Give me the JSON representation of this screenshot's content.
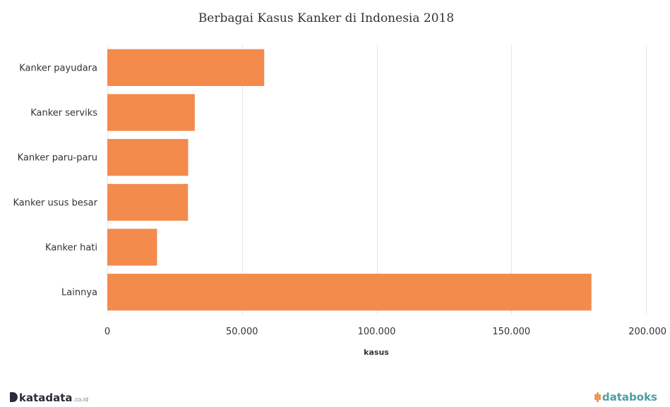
{
  "chart_data": {
    "type": "bar",
    "orientation": "horizontal",
    "title": "Berbagai Kasus Kanker di Indonesia 2018",
    "categories": [
      "Kanker payudara",
      "Kanker serviks",
      "Kanker paru-paru",
      "Kanker usus besar",
      "Kanker hati",
      "Lainnya"
    ],
    "series": [
      {
        "values": [
          58256,
          32469,
          30023,
          29944,
          18468,
          179748
        ]
      }
    ],
    "xlabel": "kasus",
    "xlim": [
      0,
      200000
    ],
    "ticks": [
      0,
      50000,
      100000,
      150000,
      200000
    ],
    "tick_labels": [
      "0",
      "50.000",
      "100.000",
      "150.000",
      "200.000"
    ],
    "grid": true,
    "bar_color": "#f38b4d"
  },
  "footer": {
    "left_logo": "katadata",
    "left_logo_suffix": ".co.id",
    "right_logo": "databoks",
    "right_logo_icon": "databoks-bars-icon"
  }
}
